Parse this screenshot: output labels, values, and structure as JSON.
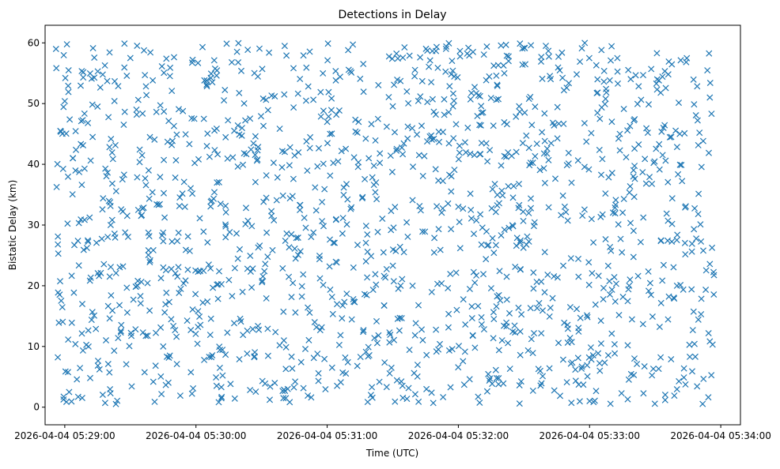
{
  "chart_data": {
    "type": "scatter",
    "title": "Detections in Delay",
    "xlabel": "Time (UTC)",
    "ylabel": "Bistatic Delay (km)",
    "xlim": [
      "2026-04-04 05:28:51",
      "2026-04-04 05:34:09"
    ],
    "ylim": [
      -2.9,
      62.9
    ],
    "x_ticks": [
      "2026-04-04 05:29:00",
      "2026-04-04 05:30:00",
      "2026-04-04 05:31:00",
      "2026-04-04 05:32:00",
      "2026-04-04 05:33:00",
      "2026-04-04 05:34:00"
    ],
    "y_ticks": [
      0,
      10,
      20,
      30,
      40,
      50,
      60
    ],
    "marker": "x",
    "marker_color": "#1f77b4",
    "grid": false,
    "x_range": [
      "2026-04-04 05:28:56",
      "2026-04-04 05:33:57"
    ],
    "y_range": [
      0.5,
      60
    ],
    "point_count": 1500,
    "series": [
      {
        "x": [
          "2026-04-04 05:28:56",
          "2026-04-04 05:28:58",
          "2026-04-04 05:29:02",
          "2026-04-04 05:29:08",
          "2026-04-04 05:29:15",
          "2026-04-04 05:29:21",
          "2026-04-04 05:29:30",
          "2026-04-04 05:29:45",
          "2026-04-04 05:30:05",
          "2026-04-04 05:30:20",
          "2026-04-04 05:30:40",
          "2026-04-04 05:31:00",
          "2026-04-04 05:31:20",
          "2026-04-04 05:31:40",
          "2026-04-04 05:32:00",
          "2026-04-04 05:32:20",
          "2026-04-04 05:32:40",
          "2026-04-04 05:33:00",
          "2026-04-04 05:33:20",
          "2026-04-04 05:33:40",
          "2026-04-04 05:33:55"
        ],
        "y": [
          59.0,
          45.5,
          2.5,
          17.0,
          49.5,
          30.0,
          57.5,
          10.0,
          43.0,
          26.0,
          1.5,
          47.0,
          2.0,
          54.5,
          33.0,
          11.0,
          59.5,
          1.0,
          38.0,
          20.0,
          51.0
        ]
      }
    ]
  }
}
